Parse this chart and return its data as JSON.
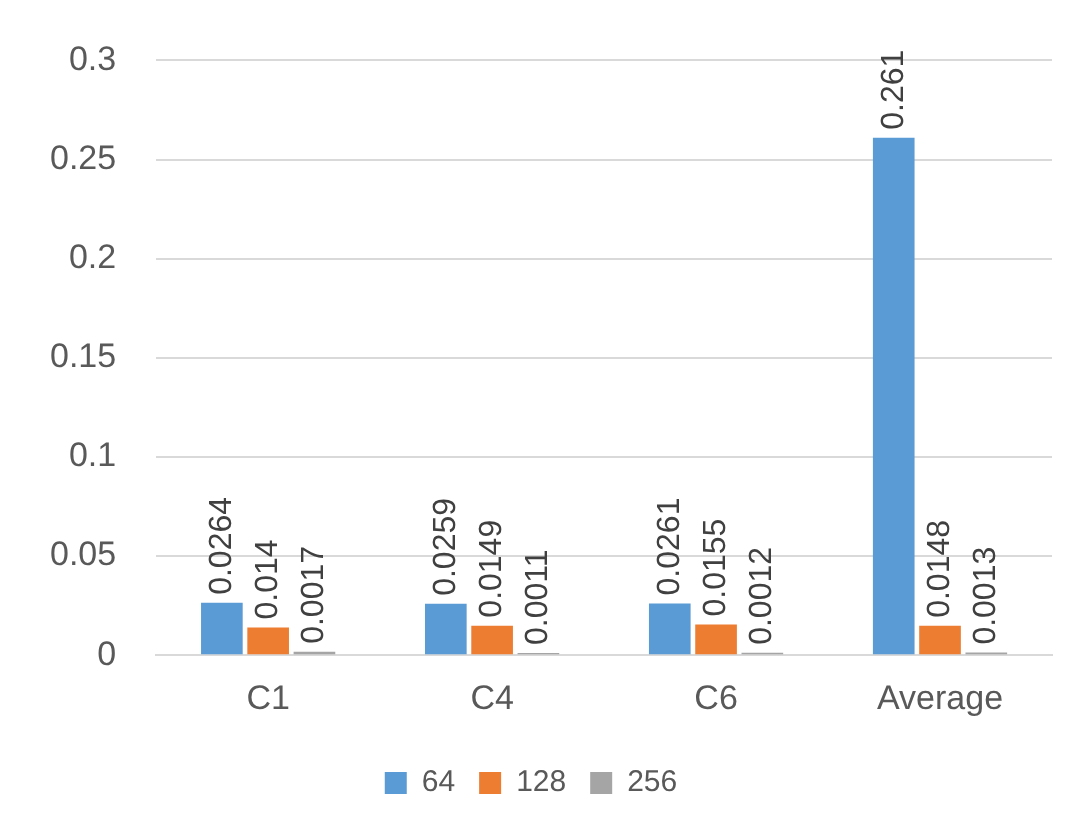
{
  "chart_data": {
    "type": "bar",
    "categories": [
      "C1",
      "C4",
      "C6",
      "Average"
    ],
    "series": [
      {
        "name": "64",
        "color": "#5b9bd5",
        "values": [
          0.0264,
          0.0259,
          0.0261,
          0.261
        ]
      },
      {
        "name": "128",
        "color": "#ed7d31",
        "values": [
          0.014,
          0.0149,
          0.0155,
          0.0148
        ]
      },
      {
        "name": "256",
        "color": "#a5a5a5",
        "values": [
          0.0017,
          0.0011,
          0.0012,
          0.0013
        ]
      }
    ],
    "ylim": [
      0,
      0.3
    ],
    "yticks": [
      0,
      0.05,
      0.1,
      0.15,
      0.2,
      0.25,
      0.3
    ],
    "grid": "y",
    "legend": "bottom",
    "data_labels": true
  }
}
